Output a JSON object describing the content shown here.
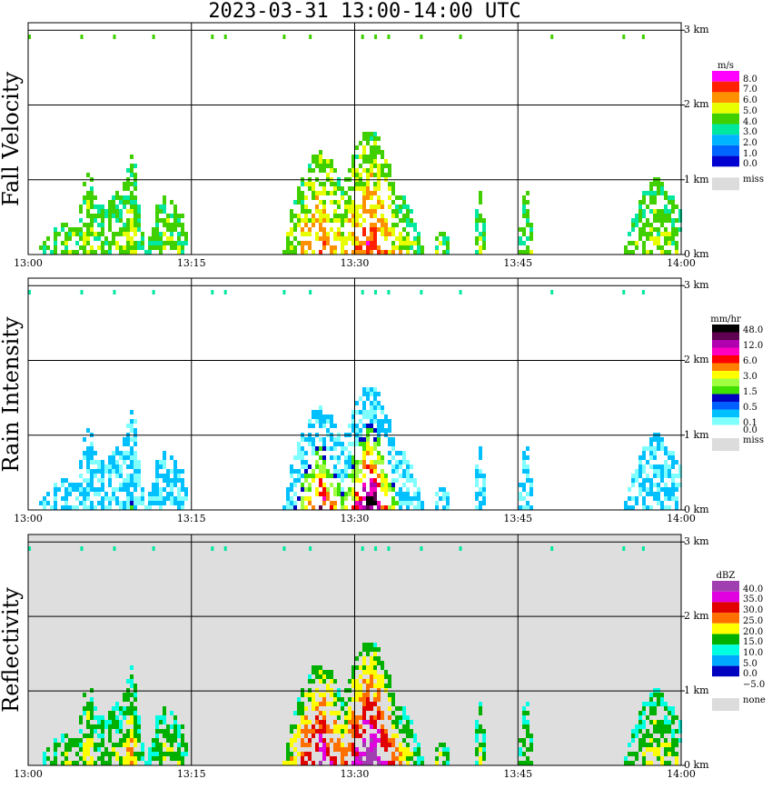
{
  "title": "2023-03-31   13:00-14:00 UTC",
  "chart_data": [
    {
      "type": "heatmap",
      "ylabel": "Fall Velocity",
      "unit": "m/s",
      "x_ticks": [
        "13:00",
        "13:15",
        "13:30",
        "13:45",
        "14:00"
      ],
      "y_ticks": [
        "0 km",
        "1 km",
        "2 km",
        "3 km"
      ],
      "ylim": [
        0,
        3.1
      ],
      "grid": true,
      "legend_placement": "right",
      "colorbar": [
        {
          "label": "8.0",
          "color": "#ff00ff"
        },
        {
          "label": "7.0",
          "color": "#ff2000"
        },
        {
          "label": "6.0",
          "color": "#ff9000"
        },
        {
          "label": "5.0",
          "color": "#e8ff00"
        },
        {
          "label": "4.0",
          "color": "#40d000"
        },
        {
          "label": "3.0",
          "color": "#00e8a0"
        },
        {
          "label": "2.0",
          "color": "#00b4ff"
        },
        {
          "label": "1.0",
          "color": "#0064ff"
        },
        {
          "label": "0.0",
          "color": "#0000d0"
        },
        {
          "label": "miss",
          "color": "#dcdcdc"
        }
      ]
    },
    {
      "type": "heatmap",
      "ylabel": "Rain Intensity",
      "unit": "mm/hr",
      "x_ticks": [
        "13:00",
        "13:15",
        "13:30",
        "13:45",
        "14:00"
      ],
      "y_ticks": [
        "0 km",
        "1 km",
        "2 km",
        "3 km"
      ],
      "ylim": [
        0,
        3.1
      ],
      "grid": true,
      "legend_placement": "right",
      "colorbar": [
        {
          "label": "48.0",
          "color": "#000000"
        },
        {
          "label": "",
          "color": "#600050"
        },
        {
          "label": "12.0",
          "color": "#b000b0"
        },
        {
          "label": "",
          "color": "#ff00c0"
        },
        {
          "label": "6.0",
          "color": "#ff0000"
        },
        {
          "label": "",
          "color": "#ff8000"
        },
        {
          "label": "3.0",
          "color": "#ffff00"
        },
        {
          "label": "",
          "color": "#a0ff40"
        },
        {
          "label": "1.5",
          "color": "#40e000"
        },
        {
          "label": "",
          "color": "#0000c0"
        },
        {
          "label": "0.5",
          "color": "#0060ff"
        },
        {
          "label": "",
          "color": "#00c0ff"
        },
        {
          "label": "0.1",
          "color": "#80ffff"
        },
        {
          "label": "0.0",
          "color": "#ffffff"
        },
        {
          "label": "miss",
          "color": "#dcdcdc"
        }
      ]
    },
    {
      "type": "heatmap",
      "ylabel": "Reflectivity",
      "unit": "dBZ",
      "x_ticks": [
        "13:00",
        "13:15",
        "13:30",
        "13:45",
        "14:00"
      ],
      "y_ticks": [
        "0 km",
        "1 km",
        "2 km",
        "3 km"
      ],
      "ylim": [
        0,
        3.1
      ],
      "grid": true,
      "legend_placement": "right",
      "colorbar": [
        {
          "label": "40.0",
          "color": "#a040b0"
        },
        {
          "label": "35.0",
          "color": "#e000e0"
        },
        {
          "label": "30.0",
          "color": "#e00000"
        },
        {
          "label": "25.0",
          "color": "#ff7000"
        },
        {
          "label": "20.0",
          "color": "#ffff00"
        },
        {
          "label": "15.0",
          "color": "#00b000"
        },
        {
          "label": "10.0",
          "color": "#00ffe0"
        },
        {
          "label": "5.0",
          "color": "#00a8ff"
        },
        {
          "label": "0.0",
          "color": "#0000c0"
        },
        {
          "label": "−5.0",
          "color": "#ffffff"
        },
        {
          "label": "none",
          "color": "#dcdcdc"
        }
      ]
    }
  ]
}
